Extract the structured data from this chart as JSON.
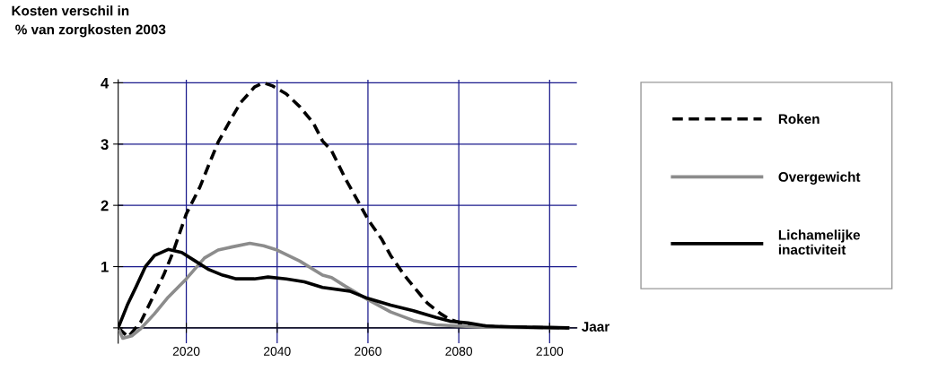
{
  "chart_data": {
    "type": "line",
    "ylabel": "Kosten verschil in\n % van zorgkosten 2003",
    "xlabel": "Jaar",
    "xlim": [
      2005,
      2106
    ],
    "xticks": [
      2020,
      2040,
      2060,
      2080,
      2100
    ],
    "ylim": [
      -0.25,
      4.05
    ],
    "yticks": [
      {
        "value": 0,
        "label": null
      },
      1,
      2,
      3,
      4
    ],
    "grid": true,
    "legend": "right",
    "marker": "none",
    "series": [
      {
        "name": "Roken",
        "color": "#000000",
        "line_style": "dashed",
        "x": [
          2005,
          2007.2,
          2010,
          2015,
          2017,
          2020,
          2023,
          2025,
          2027,
          2030,
          2032,
          2035,
          2037,
          2039,
          2042,
          2045,
          2048,
          2050,
          2052,
          2055,
          2058,
          2060,
          2063,
          2065,
          2068,
          2070,
          2073,
          2076,
          2078,
          2080,
          2083,
          2088,
          2095,
          2104
        ],
        "values": [
          0,
          -0.15,
          0.1,
          0.86,
          1.22,
          1.86,
          2.3,
          2.67,
          3.03,
          3.43,
          3.68,
          3.93,
          4.0,
          3.95,
          3.82,
          3.61,
          3.34,
          3.05,
          2.89,
          2.44,
          2.04,
          1.77,
          1.45,
          1.18,
          0.86,
          0.68,
          0.41,
          0.23,
          0.14,
          0.09,
          0.05,
          0.02,
          0.01,
          0
        ]
      },
      {
        "name": "Overgewicht",
        "color": "#8c8c8c",
        "line_style": "solid",
        "x": [
          2005,
          2006,
          2008,
          2010,
          2013,
          2016,
          2020,
          2024,
          2027,
          2030,
          2034,
          2037,
          2040,
          2045,
          2050,
          2052,
          2055,
          2060,
          2065,
          2070,
          2075,
          2080,
          2085,
          2104
        ],
        "values": [
          0,
          -0.17,
          -0.13,
          -0.01,
          0.23,
          0.5,
          0.8,
          1.14,
          1.27,
          1.32,
          1.38,
          1.34,
          1.27,
          1.09,
          0.86,
          0.82,
          0.68,
          0.46,
          0.26,
          0.12,
          0.05,
          0.03,
          0.01,
          0
        ]
      },
      {
        "name": "Lichamelijke\ninactiviteit",
        "color": "#000000",
        "line_style": "solid",
        "x": [
          2005,
          2007,
          2009,
          2011,
          2013,
          2016,
          2019,
          2022,
          2025,
          2028,
          2031,
          2035,
          2038,
          2042,
          2046,
          2050,
          2056,
          2060,
          2065,
          2070,
          2075,
          2078,
          2082,
          2086,
          2090,
          2095,
          2104
        ],
        "values": [
          0,
          0.37,
          0.68,
          1.0,
          1.18,
          1.28,
          1.23,
          1.09,
          0.95,
          0.86,
          0.8,
          0.8,
          0.83,
          0.8,
          0.75,
          0.66,
          0.6,
          0.48,
          0.37,
          0.28,
          0.17,
          0.11,
          0.08,
          0.03,
          0.02,
          0.01,
          0
        ]
      }
    ]
  }
}
